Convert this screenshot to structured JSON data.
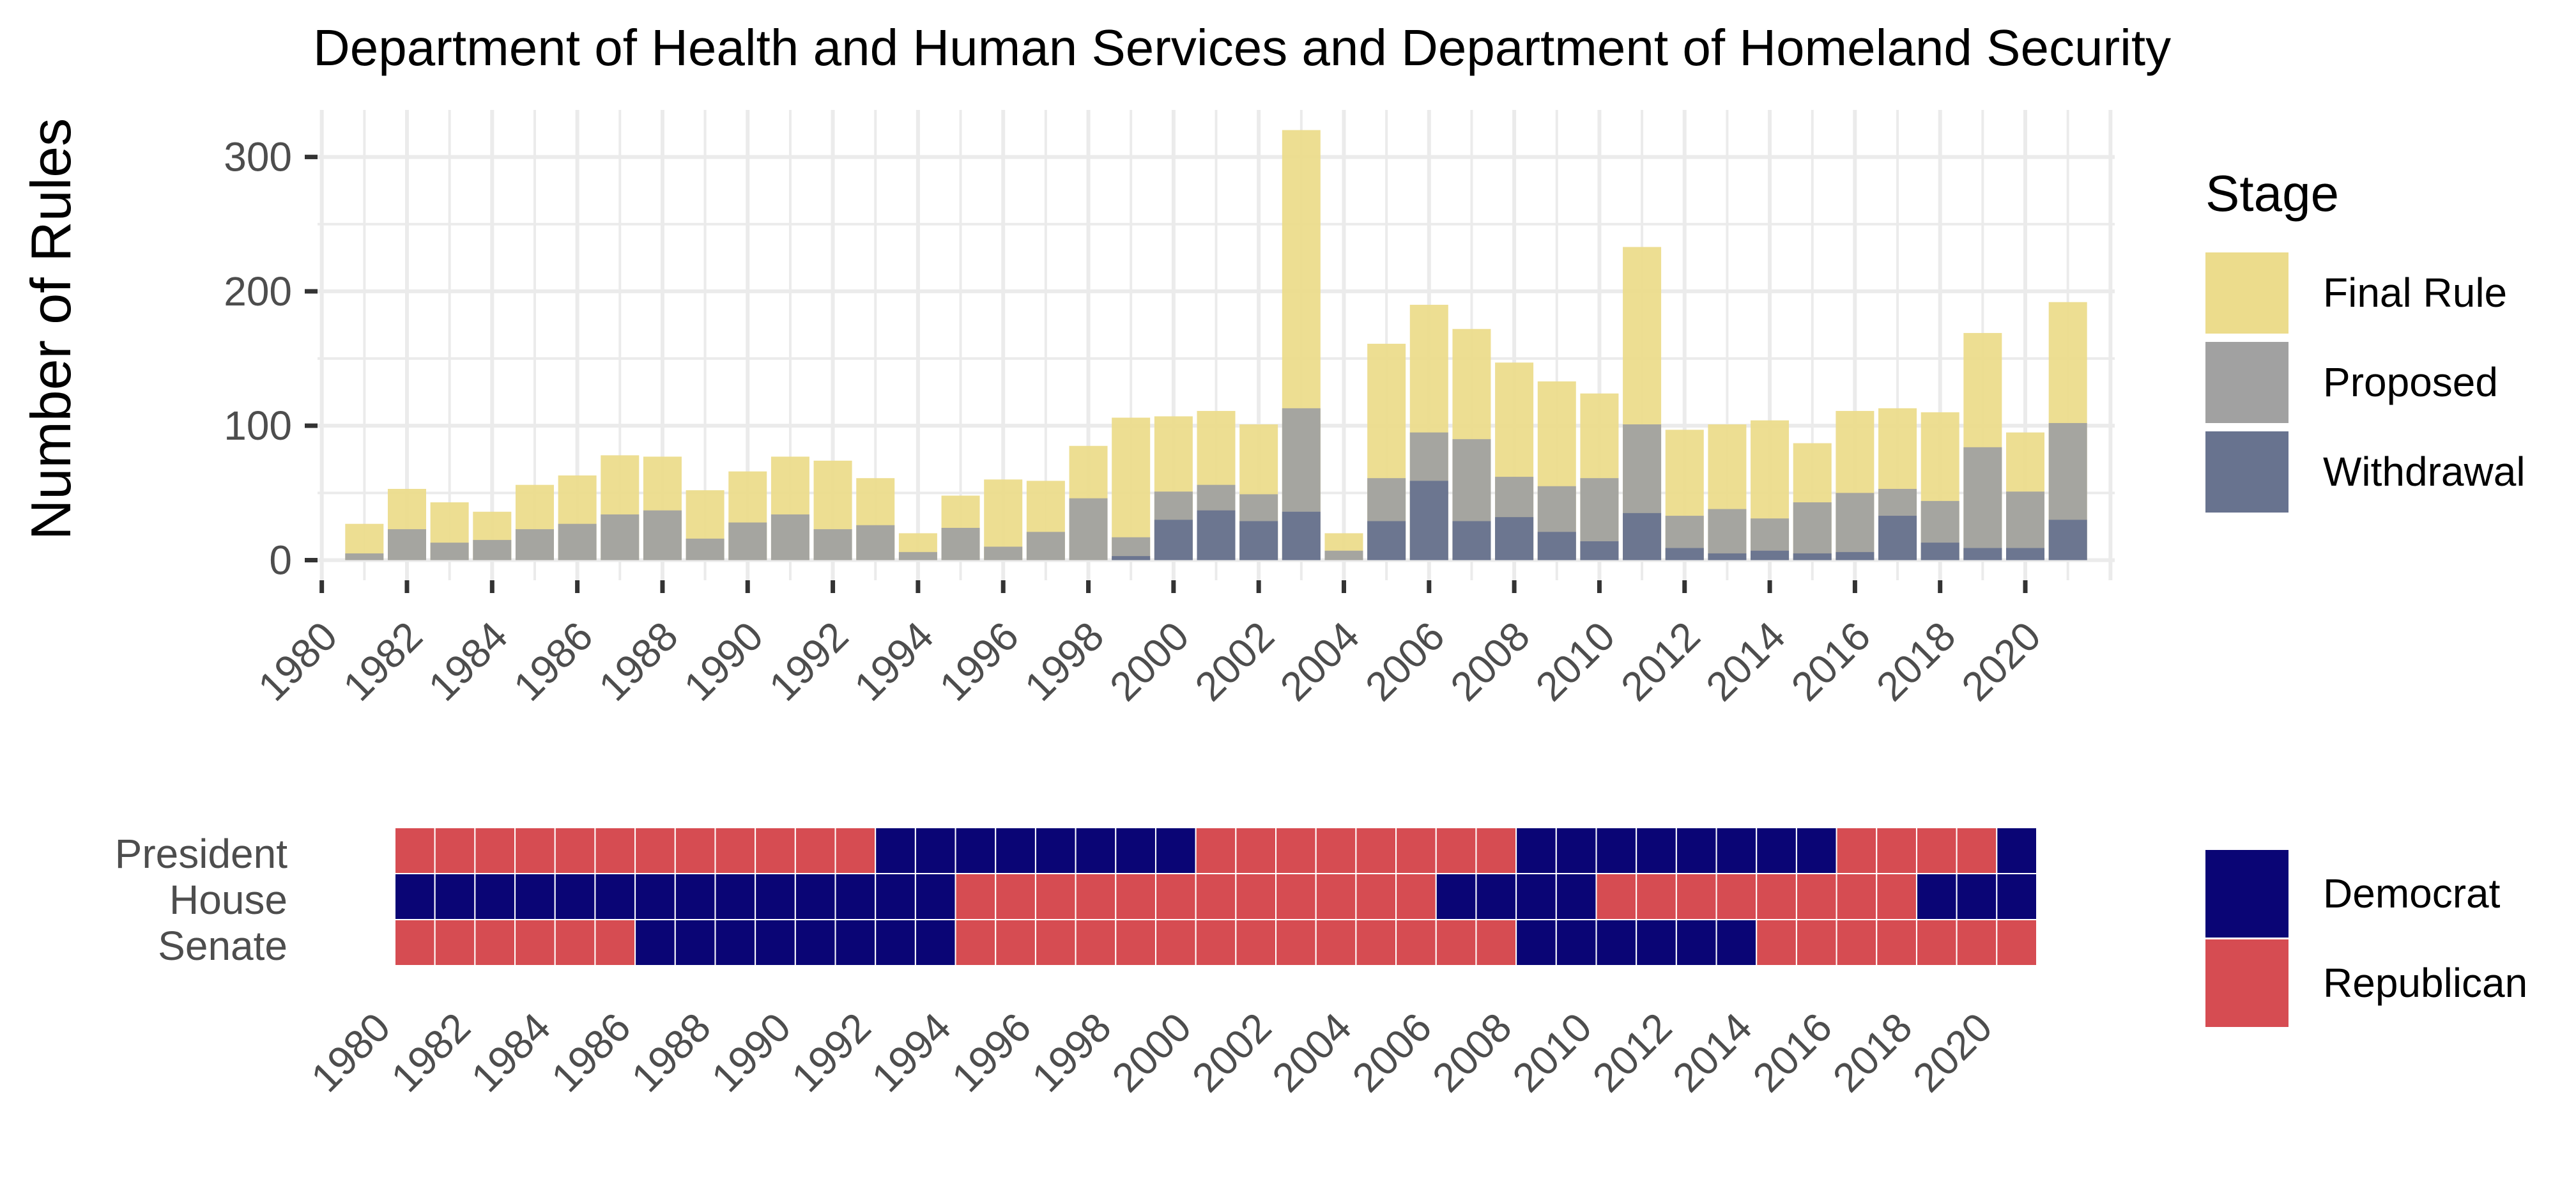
{
  "chart_data": [
    {
      "type": "bar",
      "stacking": "overlay",
      "title": "Department of Health and Human Services and Department of Homeland Security",
      "xlabel": "",
      "ylabel": "Number of Rules",
      "x": [
        1981,
        1982,
        1983,
        1984,
        1985,
        1986,
        1987,
        1988,
        1989,
        1990,
        1991,
        1992,
        1993,
        1994,
        1995,
        1996,
        1997,
        1998,
        1999,
        2000,
        2001,
        2002,
        2003,
        2004,
        2005,
        2006,
        2007,
        2008,
        2009,
        2010,
        2011,
        2012,
        2013,
        2014,
        2015,
        2016,
        2017,
        2018,
        2019,
        2020,
        2021
      ],
      "xticks": [
        "1980",
        "1982",
        "1984",
        "1986",
        "1988",
        "1990",
        "1992",
        "1994",
        "1996",
        "1998",
        "2000",
        "2002",
        "2004",
        "2006",
        "2008",
        "2010",
        "2012",
        "2014",
        "2016",
        "2018",
        "2020"
      ],
      "xlim": [
        1979.9,
        2022.1
      ],
      "ylim": [
        -15,
        335
      ],
      "yticks": [
        "0",
        "100",
        "200",
        "300"
      ],
      "series": [
        {
          "name": "Final Rule",
          "color": "#ecdc8c",
          "values": [
            27,
            53,
            43,
            36,
            56,
            63,
            78,
            77,
            52,
            66,
            77,
            74,
            61,
            20,
            48,
            60,
            59,
            85,
            106,
            107,
            111,
            101,
            320,
            20,
            161,
            190,
            172,
            147,
            133,
            124,
            233,
            97,
            101,
            104,
            87,
            111,
            113,
            110,
            169,
            95,
            192
          ]
        },
        {
          "name": "Proposed",
          "color": "#a1a1a1",
          "values": [
            5,
            23,
            13,
            15,
            23,
            27,
            34,
            37,
            16,
            28,
            34,
            23,
            26,
            6,
            24,
            10,
            21,
            46,
            17,
            51,
            56,
            49,
            113,
            7,
            61,
            95,
            90,
            62,
            55,
            61,
            101,
            33,
            38,
            31,
            43,
            50,
            53,
            44,
            84,
            51,
            102
          ]
        },
        {
          "name": "Withdrawal",
          "color": "#68738f",
          "values": [
            0,
            0,
            0,
            0,
            0,
            0,
            0,
            0,
            0,
            0,
            0,
            0,
            0,
            0,
            0,
            0,
            0,
            0,
            3,
            30,
            37,
            29,
            36,
            0,
            29,
            59,
            29,
            32,
            21,
            14,
            35,
            9,
            5,
            7,
            5,
            6,
            33,
            13,
            9,
            9,
            30
          ]
        }
      ],
      "legend": {
        "title": "Stage",
        "position": "right"
      }
    },
    {
      "type": "heatmap",
      "rows": [
        "President",
        "House",
        "Senate"
      ],
      "x": [
        1981,
        1982,
        1983,
        1984,
        1985,
        1986,
        1987,
        1988,
        1989,
        1990,
        1991,
        1992,
        1993,
        1994,
        1995,
        1996,
        1997,
        1998,
        1999,
        2000,
        2001,
        2002,
        2003,
        2004,
        2005,
        2006,
        2007,
        2008,
        2009,
        2010,
        2011,
        2012,
        2013,
        2014,
        2015,
        2016,
        2017,
        2018,
        2019,
        2020,
        2021
      ],
      "xticks": [
        "1980",
        "1982",
        "1984",
        "1986",
        "1988",
        "1990",
        "1992",
        "1994",
        "1996",
        "1998",
        "2000",
        "2002",
        "2004",
        "2006",
        "2008",
        "2010",
        "2012",
        "2014",
        "2016",
        "2018",
        "2020"
      ],
      "categories": [
        "Democrat",
        "Republican"
      ],
      "colors": {
        "Democrat": "#0a0575",
        "Republican": "#d64c52"
      },
      "cells": {
        "President": [
          "R",
          "R",
          "R",
          "R",
          "R",
          "R",
          "R",
          "R",
          "R",
          "R",
          "R",
          "R",
          "D",
          "D",
          "D",
          "D",
          "D",
          "D",
          "D",
          "D",
          "R",
          "R",
          "R",
          "R",
          "R",
          "R",
          "R",
          "R",
          "D",
          "D",
          "D",
          "D",
          "D",
          "D",
          "D",
          "D",
          "R",
          "R",
          "R",
          "R",
          "D"
        ],
        "House": [
          "D",
          "D",
          "D",
          "D",
          "D",
          "D",
          "D",
          "D",
          "D",
          "D",
          "D",
          "D",
          "D",
          "D",
          "R",
          "R",
          "R",
          "R",
          "R",
          "R",
          "R",
          "R",
          "R",
          "R",
          "R",
          "R",
          "D",
          "D",
          "D",
          "D",
          "R",
          "R",
          "R",
          "R",
          "R",
          "R",
          "R",
          "R",
          "D",
          "D",
          "D"
        ],
        "Senate": [
          "R",
          "R",
          "R",
          "R",
          "R",
          "R",
          "D",
          "D",
          "D",
          "D",
          "D",
          "D",
          "D",
          "D",
          "R",
          "R",
          "R",
          "R",
          "R",
          "R",
          "R",
          "R",
          "R",
          "R",
          "R",
          "R",
          "R",
          "R",
          "D",
          "D",
          "D",
          "D",
          "D",
          "D",
          "R",
          "R",
          "R",
          "R",
          "R",
          "R",
          "R"
        ]
      },
      "legend": {
        "position": "right"
      }
    }
  ]
}
